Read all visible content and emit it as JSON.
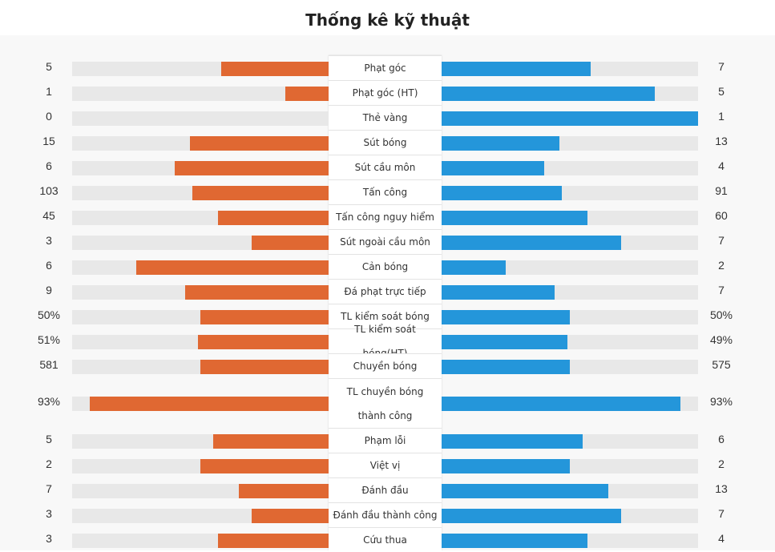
{
  "title": "Thống kê kỹ thuật",
  "colors": {
    "home": "#e06832",
    "away": "#2496da",
    "track": "#e8e8e8"
  },
  "chart_data": {
    "type": "bar",
    "title": "Thống kê kỹ thuật",
    "series": [
      {
        "name": "home",
        "values": [
          5,
          1,
          0,
          15,
          6,
          103,
          45,
          3,
          6,
          9,
          50,
          51,
          581,
          93,
          5,
          2,
          7,
          3,
          3
        ]
      },
      {
        "name": "away",
        "values": [
          7,
          5,
          1,
          13,
          4,
          91,
          60,
          7,
          2,
          7,
          50,
          49,
          575,
          93,
          6,
          2,
          13,
          7,
          4
        ]
      }
    ],
    "rows": [
      {
        "label": "Phạt góc",
        "home": "5",
        "away": "7",
        "home_frac": 0.42,
        "away_frac": 0.58
      },
      {
        "label": "Phạt góc (HT)",
        "home": "1",
        "away": "5",
        "home_frac": 0.17,
        "away_frac": 0.83
      },
      {
        "label": "Thẻ vàng",
        "home": "0",
        "away": "1",
        "home_frac": 0.0,
        "away_frac": 1.0
      },
      {
        "label": "Sút bóng",
        "home": "15",
        "away": "13",
        "home_frac": 0.54,
        "away_frac": 0.46
      },
      {
        "label": "Sút cầu môn",
        "home": "6",
        "away": "4",
        "home_frac": 0.6,
        "away_frac": 0.4
      },
      {
        "label": "Tấn công",
        "home": "103",
        "away": "91",
        "home_frac": 0.53,
        "away_frac": 0.47
      },
      {
        "label": "Tấn công nguy hiểm",
        "home": "45",
        "away": "60",
        "home_frac": 0.43,
        "away_frac": 0.57
      },
      {
        "label": "Sút ngoài cầu môn",
        "home": "3",
        "away": "7",
        "home_frac": 0.3,
        "away_frac": 0.7
      },
      {
        "label": "Cản bóng",
        "home": "6",
        "away": "2",
        "home_frac": 0.75,
        "away_frac": 0.25
      },
      {
        "label": "Đá phạt trực tiếp",
        "home": "9",
        "away": "7",
        "home_frac": 0.56,
        "away_frac": 0.44
      },
      {
        "label": "TL kiểm soát bóng",
        "home": "50%",
        "away": "50%",
        "home_frac": 0.5,
        "away_frac": 0.5
      },
      {
        "label": "TL kiểm soát bóng(HT)",
        "home": "51%",
        "away": "49%",
        "home_frac": 0.51,
        "away_frac": 0.49
      },
      {
        "label": "Chuyền bóng",
        "home": "581",
        "away": "575",
        "home_frac": 0.5,
        "away_frac": 0.5
      },
      {
        "label": "TL chuyền bóng thành công",
        "home": "93%",
        "away": "93%",
        "home_frac": 0.93,
        "away_frac": 0.93
      },
      {
        "label": "Phạm lỗi",
        "home": "5",
        "away": "6",
        "home_frac": 0.45,
        "away_frac": 0.55
      },
      {
        "label": "Việt vị",
        "home": "2",
        "away": "2",
        "home_frac": 0.5,
        "away_frac": 0.5
      },
      {
        "label": "Đánh đầu",
        "home": "7",
        "away": "13",
        "home_frac": 0.35,
        "away_frac": 0.65
      },
      {
        "label": "Đánh đầu thành công",
        "home": "3",
        "away": "7",
        "home_frac": 0.3,
        "away_frac": 0.7
      },
      {
        "label": "Cứu thua",
        "home": "3",
        "away": "4",
        "home_frac": 0.43,
        "away_frac": 0.57
      }
    ]
  }
}
